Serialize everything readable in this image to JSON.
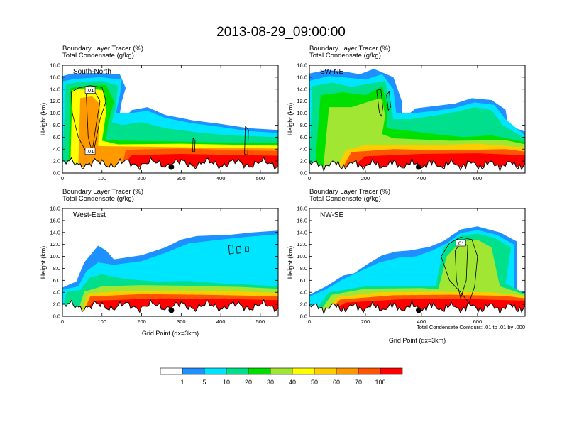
{
  "figure_title": "2013-08-29_09:00:00",
  "chart_data": [
    {
      "type": "heatmap",
      "panel": "South-North",
      "header": [
        "Boundary Layer Tracer   (%)",
        "Total Condensate   (g/kg)"
      ],
      "xlabel": "",
      "ylabel": "Height (km)",
      "xlim": [
        0,
        545
      ],
      "ylim": [
        0,
        18
      ],
      "xticks": [
        "0",
        "100",
        "200",
        "300",
        "400",
        "500"
      ],
      "yticks": [
        "0.0",
        "2.0",
        "4.0",
        "6.0",
        "8.0",
        "10.0",
        "12.0",
        "14.0",
        "16.0",
        "18.0"
      ],
      "contour_labels": [
        ".01",
        ".01"
      ],
      "marker_x": 275,
      "marker_y": 1.0
    },
    {
      "type": "heatmap",
      "panel": "SW-NE",
      "header": [
        "Boundary Layer Tracer   (%)",
        "Total Condensate   (g/kg)"
      ],
      "xlabel": "",
      "ylabel": "Height (km)",
      "xlim": [
        0,
        770
      ],
      "ylim": [
        0,
        18
      ],
      "xticks": [
        "0",
        "200",
        "400",
        "600"
      ],
      "yticks": [
        "0.0",
        "2.0",
        "4.0",
        "6.0",
        "8.0",
        "10.0",
        "12.0",
        "14.0",
        "16.0",
        "18.0"
      ],
      "marker_x": 390,
      "marker_y": 1.0
    },
    {
      "type": "heatmap",
      "panel": "West-East",
      "header": [
        "Boundary Layer Tracer   (%)",
        "Total Condensate   (g/kg)"
      ],
      "xlabel": "Grid Point (dx=3km)",
      "ylabel": "Height (km)",
      "xlim": [
        0,
        545
      ],
      "ylim": [
        0,
        18
      ],
      "xticks": [
        "0",
        "100",
        "200",
        "300",
        "400",
        "500"
      ],
      "yticks": [
        "0.0",
        "2.0",
        "4.0",
        "6.0",
        "8.0",
        "10.0",
        "12.0",
        "14.0",
        "16.0",
        "18.0"
      ],
      "marker_x": 275,
      "marker_y": 1.0
    },
    {
      "type": "heatmap",
      "panel": "NW-SE",
      "header": [
        "Boundary Layer Tracer   (%)",
        "Total Condensate   (g/kg)"
      ],
      "xlabel": "Grid Point (dx=3km)",
      "ylabel": "Height (km)",
      "xlim": [
        0,
        770
      ],
      "ylim": [
        0,
        18
      ],
      "xticks": [
        "0",
        "200",
        "400",
        "600"
      ],
      "yticks": [
        "0.0",
        "2.0",
        "4.0",
        "6.0",
        "8.0",
        "10.0",
        "12.0",
        "14.0",
        "16.0",
        "18.0"
      ],
      "contour_labels": [
        ".01"
      ],
      "contour_note": "Total Condensate Contours: .01 to .01 by .000",
      "marker_x": 390,
      "marker_y": 1.0
    }
  ],
  "colorbar": {
    "levels": [
      "1",
      "5",
      "10",
      "20",
      "30",
      "40",
      "50",
      "60",
      "70",
      "100"
    ],
    "colors": [
      "#ffffff",
      "#1e90ff",
      "#00e5ff",
      "#00e08c",
      "#00e000",
      "#a0e632",
      "#ffff00",
      "#ffcc00",
      "#ff9900",
      "#ff5500",
      "#ff0000"
    ]
  }
}
